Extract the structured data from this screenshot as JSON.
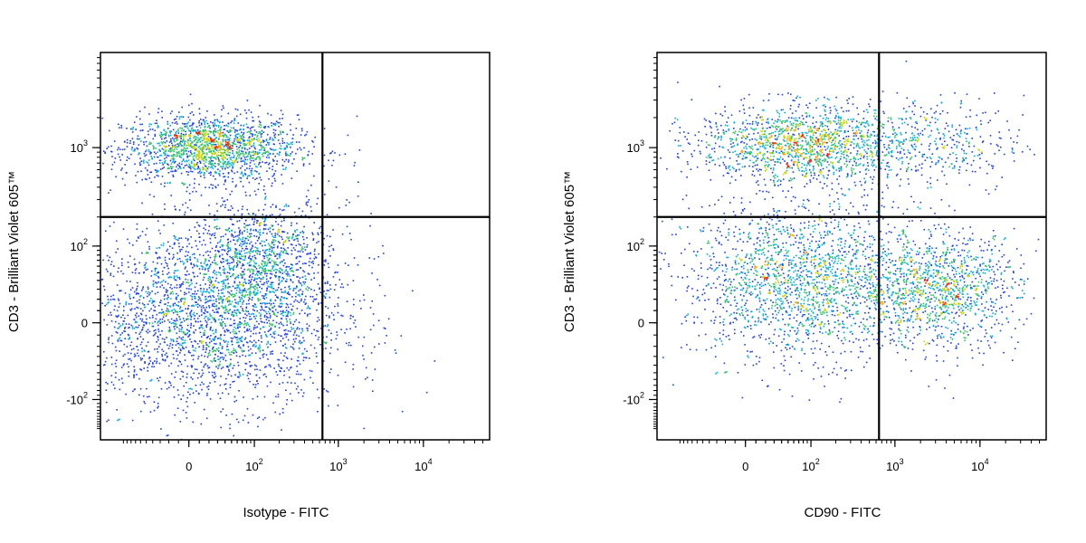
{
  "chart_data": [
    {
      "type": "scatter",
      "style": "density-dot-plot",
      "xlabel": "Isotype - FITC",
      "ylabel": "CD3 - Brilliant Violet 605™",
      "x_scale": "biexponential",
      "y_scale": "biexponential",
      "x_ticks": [
        {
          "value": 0,
          "base": "0",
          "exp": ""
        },
        {
          "value": 100,
          "base": "10",
          "exp": "2"
        },
        {
          "value": 1000,
          "base": "10",
          "exp": "3"
        },
        {
          "value": 10000,
          "base": "10",
          "exp": "4"
        }
      ],
      "y_ticks": [
        {
          "value": -100,
          "base": "-10",
          "exp": "2"
        },
        {
          "value": 0,
          "base": "0",
          "exp": ""
        },
        {
          "value": 100,
          "base": "10",
          "exp": "2"
        },
        {
          "value": 1000,
          "base": "10",
          "exp": "3"
        }
      ],
      "quadrant_gate": {
        "x": 650,
        "y": 200
      },
      "populations": [
        {
          "x": 20,
          "y": 1000,
          "sx": 0.45,
          "sy": 0.17,
          "n": 1700
        },
        {
          "x": 20,
          "y": 5,
          "sx": 0.7,
          "sy": 0.45,
          "n": 2600
        },
        {
          "x": 120,
          "y": 80,
          "sx": 0.35,
          "sy": 0.3,
          "n": 900
        },
        {
          "x": 900,
          "y": 300,
          "sx": 0.25,
          "sy": 0.35,
          "n": 25
        }
      ]
    },
    {
      "type": "scatter",
      "style": "density-dot-plot",
      "xlabel": "CD90 - FITC",
      "ylabel": "CD3 - Brilliant Violet 605™",
      "x_scale": "biexponential",
      "y_scale": "biexponential",
      "x_ticks": [
        {
          "value": 0,
          "base": "0",
          "exp": ""
        },
        {
          "value": 100,
          "base": "10",
          "exp": "2"
        },
        {
          "value": 1000,
          "base": "10",
          "exp": "3"
        },
        {
          "value": 10000,
          "base": "10",
          "exp": "4"
        }
      ],
      "y_ticks": [
        {
          "value": -100,
          "base": "-10",
          "exp": "2"
        },
        {
          "value": 0,
          "base": "0",
          "exp": ""
        },
        {
          "value": 100,
          "base": "10",
          "exp": "2"
        },
        {
          "value": 1000,
          "base": "10",
          "exp": "3"
        }
      ],
      "quadrant_gate": {
        "x": 650,
        "y": 200
      },
      "populations": [
        {
          "x": 80,
          "y": 1100,
          "sx": 0.55,
          "sy": 0.2,
          "n": 1500
        },
        {
          "x": 3000,
          "y": 1100,
          "sx": 0.45,
          "sy": 0.25,
          "n": 350
        },
        {
          "x": 80,
          "y": 40,
          "sx": 0.6,
          "sy": 0.4,
          "n": 2000
        },
        {
          "x": 3500,
          "y": 30,
          "sx": 0.4,
          "sy": 0.3,
          "n": 1100
        }
      ]
    }
  ],
  "colors": {
    "density": [
      "#0000cc",
      "#1a3cff",
      "#00b0e0",
      "#2ec46a",
      "#c8d400",
      "#ffa500",
      "#ff2200"
    ],
    "axis": "#000000",
    "background": "#ffffff"
  }
}
